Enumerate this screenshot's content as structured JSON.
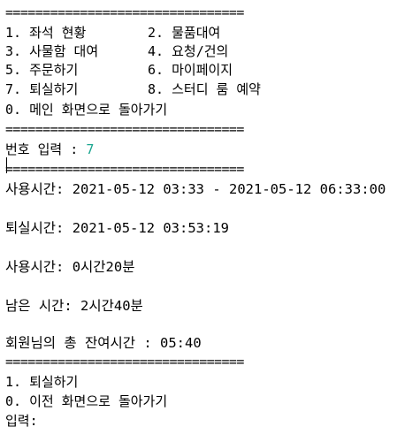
{
  "separator": "================================",
  "menu": {
    "items_left": [
      "1. 좌석 현황",
      "3. 사물함 대여",
      "5. 주문하기",
      "7. 퇴실하기"
    ],
    "items_right": [
      "2. 물품대여",
      "4. 요청/건의",
      "6. 마이페이지",
      "8. 스터디 룸 예약"
    ],
    "back_main": "0. 메인 화면으로 돌아가기"
  },
  "prompt": {
    "label": "번호 입력 : ",
    "value": "7"
  },
  "info": {
    "usage_range": "사용시간: 2021-05-12 03:33 - 2021-05-12 06:33:00",
    "checkout_time": "퇴실시간: 2021-05-12 03:53:19",
    "used_time": "사용시간: 0시간20분",
    "remaining_time": "남은 시간: 2시간40분",
    "total_remaining": "회원님의 총 잔여시간 : 05:40"
  },
  "submenu": {
    "checkout": "1. 퇴실하기",
    "back_prev": "0. 이전 화면으로 돌아가기",
    "input_label": "입력:"
  }
}
